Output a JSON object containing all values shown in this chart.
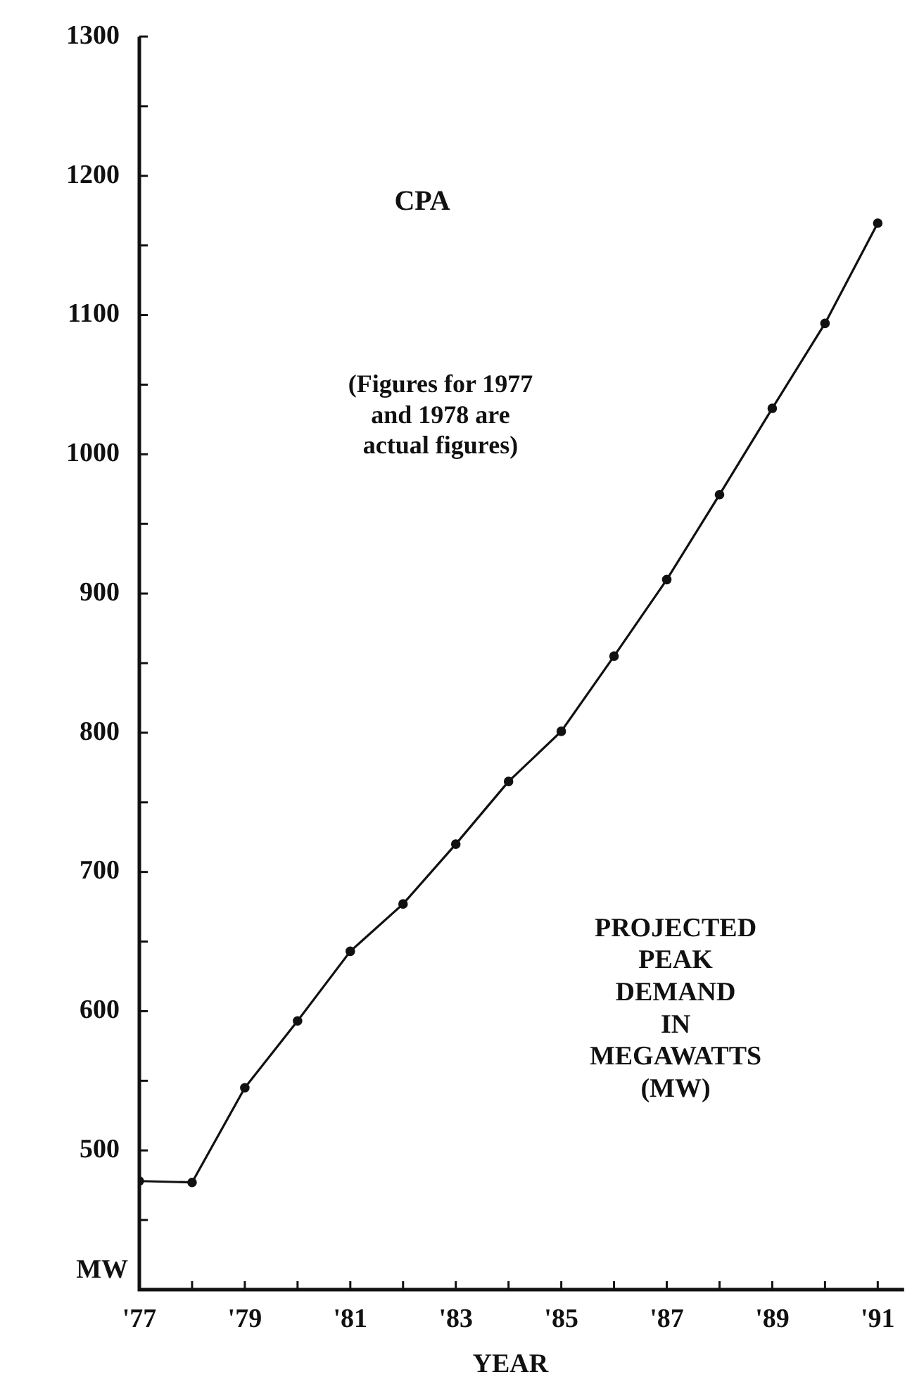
{
  "chart_data": {
    "type": "line",
    "xlabel": "YEAR",
    "ylabel": "MW",
    "annotations": [
      "CPA",
      "(Figures for 1977\nand 1978 are\nactual figures)",
      "PROJECTED\nPEAK\nDEMAND\nIN\nMEGAWATTS\n(MW)"
    ],
    "x": [
      1977,
      1978,
      1979,
      1980,
      1981,
      1982,
      1983,
      1984,
      1985,
      1986,
      1987,
      1988,
      1989,
      1990,
      1991
    ],
    "series": [
      {
        "color": "#111111",
        "values": [
          478,
          477,
          545,
          593,
          643,
          677,
          720,
          765,
          801,
          855,
          910,
          971,
          1033,
          1094,
          1166
        ]
      }
    ],
    "xlim": [
      1977,
      1991.5
    ],
    "xticks": [
      {
        "value": 1977,
        "label": "'77"
      },
      {
        "value": 1978,
        "label": null
      },
      {
        "value": 1979,
        "label": "'79"
      },
      {
        "value": 1980,
        "label": null
      },
      {
        "value": 1981,
        "label": "'81"
      },
      {
        "value": 1982,
        "label": null
      },
      {
        "value": 1983,
        "label": "'83"
      },
      {
        "value": 1984,
        "label": null
      },
      {
        "value": 1985,
        "label": "'85"
      },
      {
        "value": 1986,
        "label": null
      },
      {
        "value": 1987,
        "label": "'87"
      },
      {
        "value": 1988,
        "label": null
      },
      {
        "value": 1989,
        "label": "'89"
      },
      {
        "value": 1990,
        "label": null
      },
      {
        "value": 1991,
        "label": "'91"
      }
    ],
    "ylim": [
      400,
      1300
    ],
    "yticks": [
      {
        "value": 400,
        "label": null
      },
      {
        "value": 450,
        "label": null
      },
      500,
      {
        "value": 550,
        "label": null
      },
      600,
      {
        "value": 650,
        "label": null
      },
      700,
      {
        "value": 750,
        "label": null
      },
      800,
      {
        "value": 850,
        "label": null
      },
      900,
      {
        "value": 950,
        "label": null
      },
      1000,
      {
        "value": 1050,
        "label": null
      },
      1100,
      {
        "value": 1150,
        "label": null
      },
      1200,
      {
        "value": 1250,
        "label": null
      },
      1300
    ],
    "grid": false,
    "legend": false,
    "marker": "circle",
    "line_style": "solid"
  }
}
